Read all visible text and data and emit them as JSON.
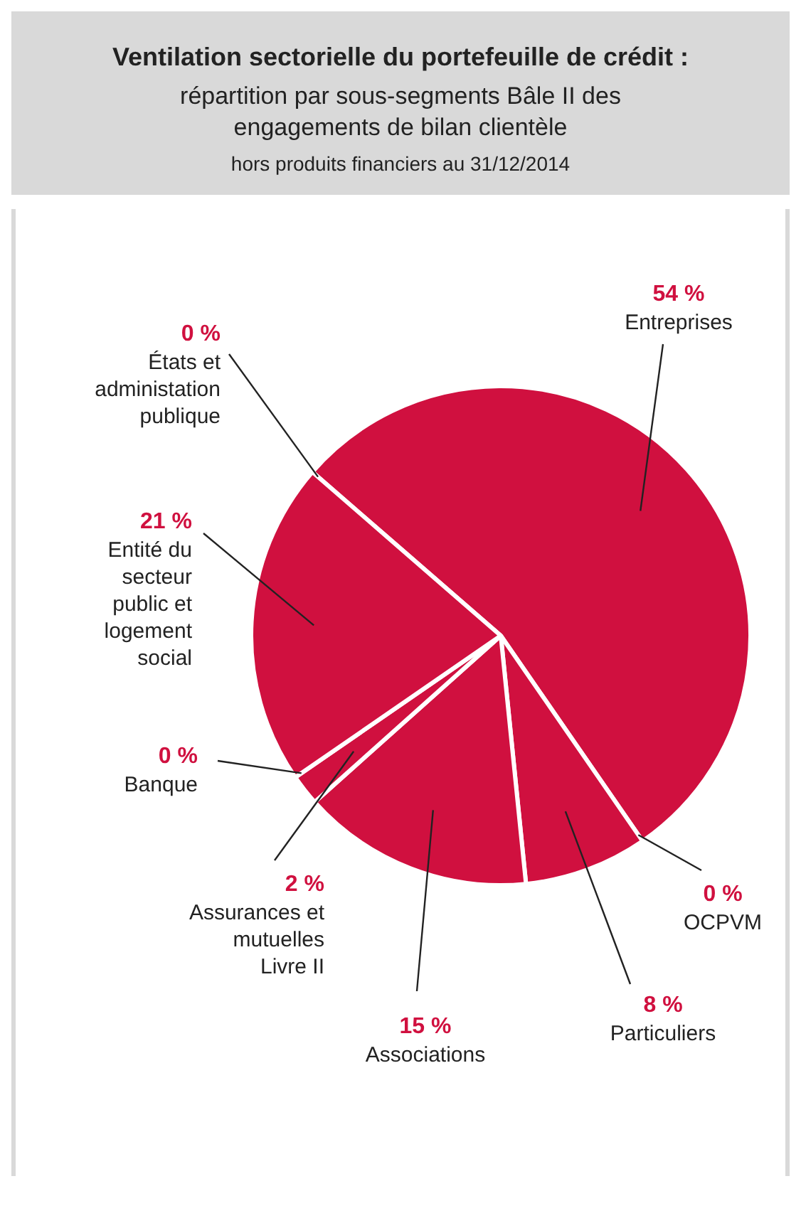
{
  "chart_data": {
    "type": "pie",
    "title": "Ventilation sectorielle du portefeuille de crédit :",
    "subtitle": "répartition par sous-segments Bâle II des engagements de bilan clientèle",
    "annotations": [
      "hors produits financiers au 31/12/2014"
    ],
    "categories": [
      "Entreprises",
      "OCPVM",
      "Particuliers",
      "Associations",
      "Assurances et mutuelles Livre II",
      "Banque",
      "Entité du secteur public et logement social",
      "États et administation publique"
    ],
    "values": [
      54,
      0,
      8,
      15,
      2,
      0,
      21,
      0
    ],
    "value_labels": [
      "54 %",
      "0 %",
      "8 %",
      "15 %",
      "2 %",
      "0 %",
      "21 %",
      "0 %"
    ],
    "colors": [
      "#d0103f",
      "#d0103f",
      "#d0103f",
      "#d0103f",
      "#d0103f",
      "#d0103f",
      "#d0103f",
      "#d0103f"
    ],
    "legend": false
  }
}
